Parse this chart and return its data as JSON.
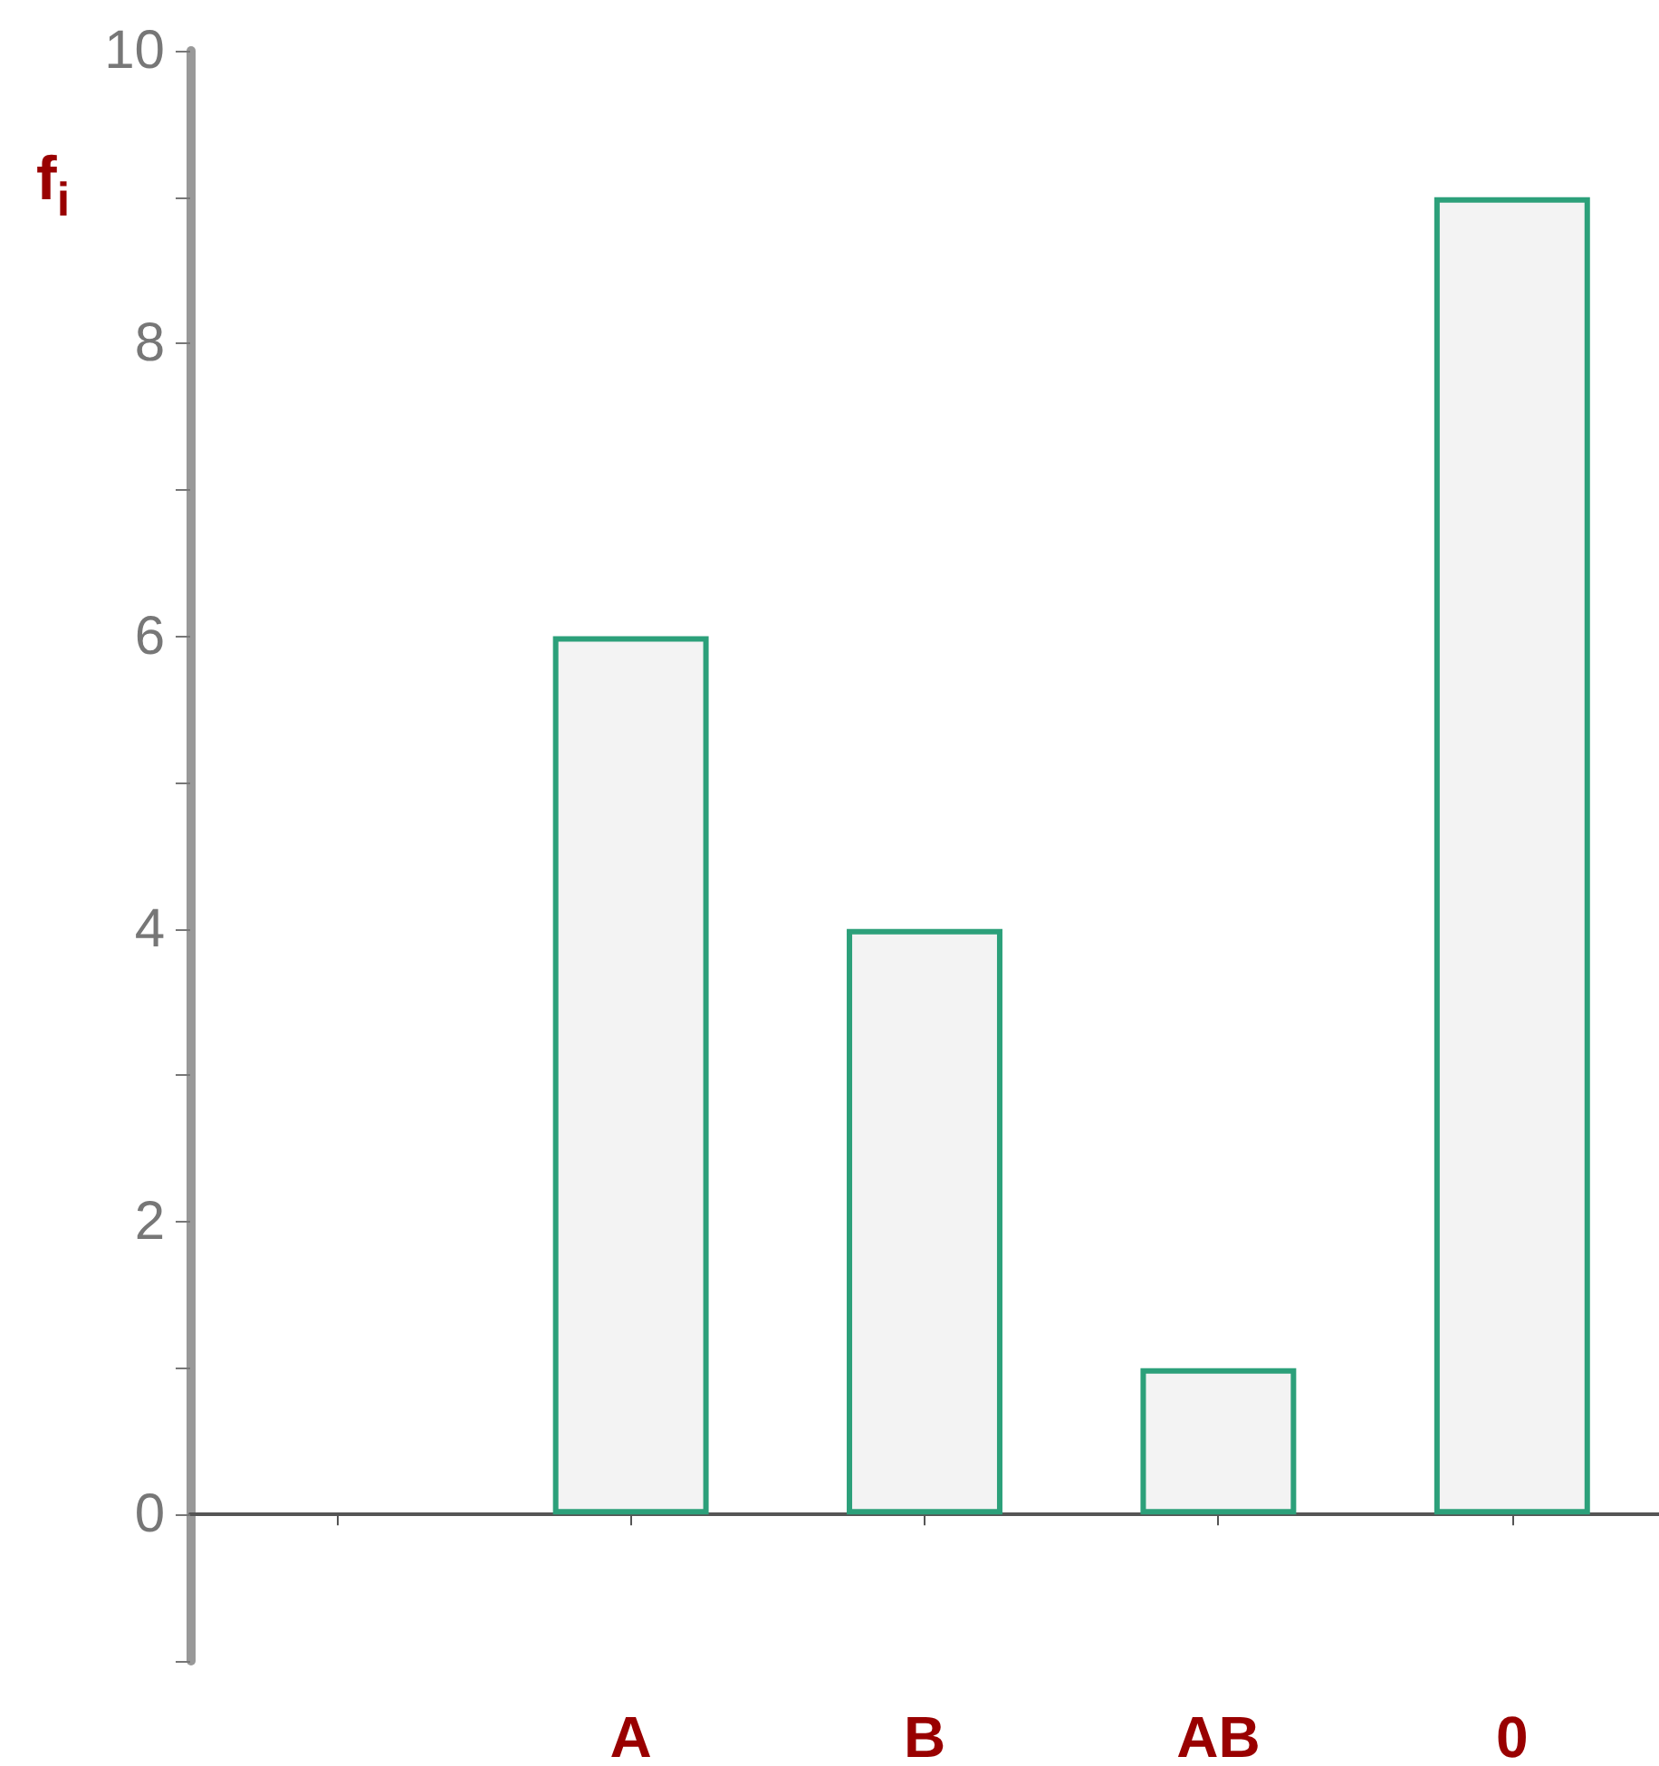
{
  "chart_data": {
    "type": "bar",
    "ylabel": "f$_{i}$",
    "categories": [
      null,
      "A",
      "B",
      "AB",
      "0"
    ],
    "values": [
      null,
      6,
      4,
      1,
      9
    ],
    "color": "#2ca07a",
    "ylim": [
      -1,
      10
    ],
    "yticks": [
      {
        "value": -1,
        "label": null
      },
      0,
      {
        "value": 1,
        "label": null
      },
      2,
      {
        "value": 3,
        "label": null
      },
      4,
      {
        "value": 5,
        "label": null
      },
      6,
      {
        "value": 7,
        "label": null
      },
      8,
      {
        "value": 9,
        "label": null
      },
      10
    ],
    "tick_labels": "xy"
  }
}
